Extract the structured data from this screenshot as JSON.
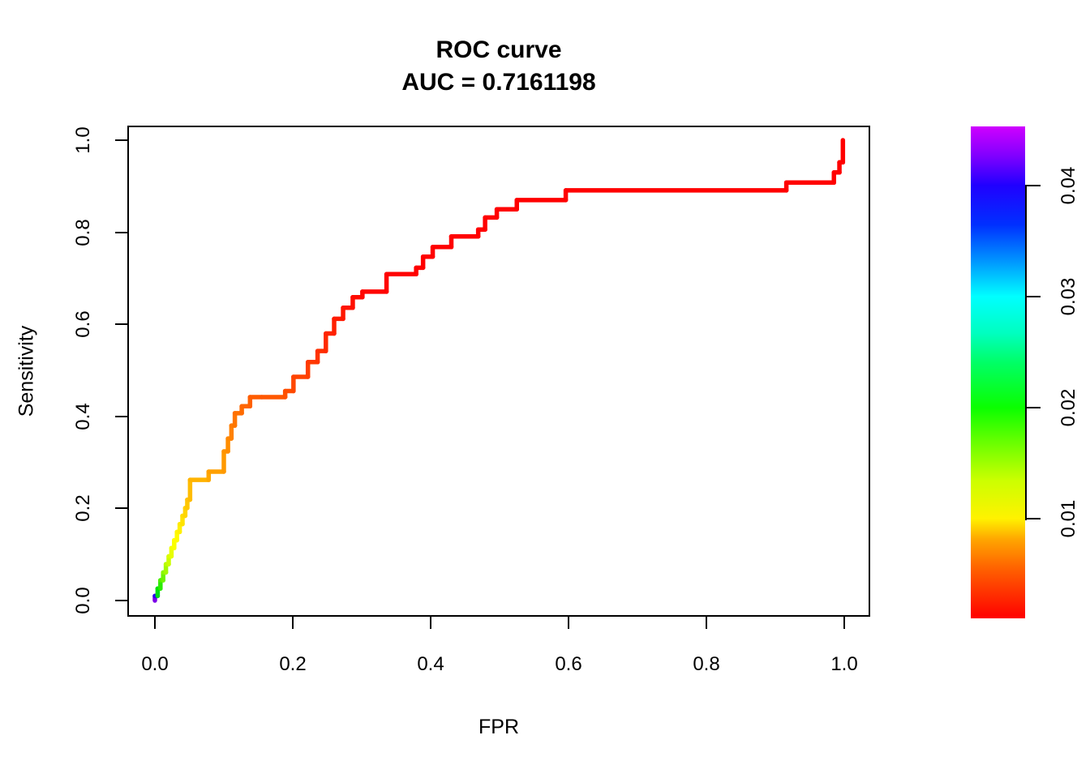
{
  "title": {
    "line1": "ROC curve",
    "line2": "AUC = 0.7161198"
  },
  "chart_data": {
    "type": "line",
    "subtype": "roc-step-curve",
    "title": "ROC curve",
    "subtitle": "AUC = 0.7161198",
    "auc_label": "AUC = 0.7161198",
    "auc_value": 0.7161198,
    "xlabel": "FPR",
    "ylabel": "Sensitivity",
    "xlim": [
      0.0,
      1.0
    ],
    "ylim": [
      0.0,
      1.0
    ],
    "grid": false,
    "background_color": "#FFFFFF",
    "x_ticks": {
      "values": [
        0.0,
        0.2,
        0.4,
        0.6,
        0.8,
        1.0
      ],
      "labels": [
        "0.0",
        "0.2",
        "0.4",
        "0.6",
        "0.8",
        "1.0"
      ]
    },
    "y_ticks": {
      "values": [
        0.0,
        0.2,
        0.4,
        0.6,
        0.8,
        1.0
      ],
      "labels": [
        "0.0",
        "0.2",
        "0.4",
        "0.6",
        "0.8",
        "1.0"
      ]
    },
    "curve_points": [
      [
        0.0,
        0.0,
        "#7A00E8"
      ],
      [
        0.0,
        0.01,
        "#2B00F0"
      ],
      [
        0.004,
        0.01,
        "#00DD15"
      ],
      [
        0.004,
        0.026,
        "#00E405"
      ],
      [
        0.008,
        0.026,
        "#2BEC00"
      ],
      [
        0.008,
        0.044,
        "#4FF000"
      ],
      [
        0.012,
        0.044,
        "#6EF400"
      ],
      [
        0.012,
        0.061,
        "#8AF700"
      ],
      [
        0.016,
        0.061,
        "#A3F900"
      ],
      [
        0.016,
        0.079,
        "#B8FB00"
      ],
      [
        0.02,
        0.079,
        "#CBFD00"
      ],
      [
        0.02,
        0.096,
        "#DAFE00"
      ],
      [
        0.024,
        0.096,
        "#E7FE00"
      ],
      [
        0.024,
        0.114,
        "#F1FF00"
      ],
      [
        0.028,
        0.114,
        "#F9FF00"
      ],
      [
        0.028,
        0.131,
        "#FDFF00"
      ],
      [
        0.032,
        0.131,
        "#FFFB00"
      ],
      [
        0.032,
        0.149,
        "#FFF600"
      ],
      [
        0.036,
        0.149,
        "#FFF000"
      ],
      [
        0.036,
        0.166,
        "#FFEA00"
      ],
      [
        0.04,
        0.166,
        "#FFE300"
      ],
      [
        0.04,
        0.184,
        "#FFDC00"
      ],
      [
        0.044,
        0.184,
        "#FFD500"
      ],
      [
        0.044,
        0.201,
        "#FFCE00"
      ],
      [
        0.047,
        0.201,
        "#FFC700"
      ],
      [
        0.047,
        0.219,
        "#FFC107"
      ],
      [
        0.051,
        0.219,
        "#FFBC00"
      ],
      [
        0.051,
        0.262,
        "#FFB300"
      ],
      [
        0.078,
        0.262,
        "#FFA800"
      ],
      [
        0.078,
        0.28,
        "#FFA000"
      ],
      [
        0.1,
        0.28,
        "#FF9900"
      ],
      [
        0.1,
        0.324,
        "#FF9300"
      ],
      [
        0.106,
        0.324,
        "#FF8D00"
      ],
      [
        0.106,
        0.352,
        "#FF8700"
      ],
      [
        0.111,
        0.352,
        "#FF8100"
      ],
      [
        0.111,
        0.38,
        "#FF7B00"
      ],
      [
        0.116,
        0.38,
        "#FF7600"
      ],
      [
        0.116,
        0.407,
        "#FF7000"
      ],
      [
        0.126,
        0.407,
        "#FF6B00"
      ],
      [
        0.126,
        0.422,
        "#FF6600"
      ],
      [
        0.138,
        0.422,
        "#FF6100"
      ],
      [
        0.138,
        0.442,
        "#FF5C00"
      ],
      [
        0.155,
        0.442,
        "#FF5700"
      ],
      [
        0.189,
        0.442,
        "#FF5200"
      ],
      [
        0.189,
        0.455,
        "#FF4D00"
      ],
      [
        0.201,
        0.455,
        "#FF4800"
      ],
      [
        0.201,
        0.486,
        "#FF4300"
      ],
      [
        0.222,
        0.486,
        "#FF3E00"
      ],
      [
        0.222,
        0.518,
        "#FF3900"
      ],
      [
        0.236,
        0.518,
        "#FF3400"
      ],
      [
        0.236,
        0.542,
        "#FF2F00"
      ],
      [
        0.248,
        0.542,
        "#FF2A00"
      ],
      [
        0.248,
        0.58,
        "#FF2500"
      ],
      [
        0.26,
        0.58,
        "#FF2000"
      ],
      [
        0.26,
        0.612,
        "#FF1B00"
      ],
      [
        0.273,
        0.612,
        "#FF1700"
      ],
      [
        0.273,
        0.636,
        "#FF1300"
      ],
      [
        0.287,
        0.636,
        "#FF0F00"
      ],
      [
        0.287,
        0.659,
        "#FF0B00"
      ],
      [
        0.301,
        0.659,
        "#FF0800"
      ],
      [
        0.301,
        0.671,
        "#FF0500"
      ],
      [
        0.336,
        0.671,
        "#FF0300"
      ],
      [
        0.336,
        0.709,
        "#FF0100"
      ],
      [
        0.379,
        0.709,
        "#FF0000"
      ],
      [
        0.379,
        0.723,
        "#FF0000"
      ],
      [
        0.389,
        0.723,
        "#FF0000"
      ],
      [
        0.389,
        0.747,
        "#FF0000"
      ],
      [
        0.403,
        0.747,
        "#FF0000"
      ],
      [
        0.403,
        0.768,
        "#FF0000"
      ],
      [
        0.43,
        0.768,
        "#FF0000"
      ],
      [
        0.43,
        0.791,
        "#FF0000"
      ],
      [
        0.469,
        0.791,
        "#FF0000"
      ],
      [
        0.469,
        0.806,
        "#FF0000"
      ],
      [
        0.479,
        0.806,
        "#FF0000"
      ],
      [
        0.479,
        0.832,
        "#FF0000"
      ],
      [
        0.496,
        0.832,
        "#FF0000"
      ],
      [
        0.496,
        0.85,
        "#FF0000"
      ],
      [
        0.525,
        0.85,
        "#FF0000"
      ],
      [
        0.525,
        0.87,
        "#FF0000"
      ],
      [
        0.596,
        0.87,
        "#FF0000"
      ],
      [
        0.596,
        0.891,
        "#FF0000"
      ],
      [
        0.916,
        0.891,
        "#FF0000"
      ],
      [
        0.916,
        0.908,
        "#FF0000"
      ],
      [
        0.985,
        0.908,
        "#FF0000"
      ],
      [
        0.985,
        0.93,
        "#FF0000"
      ],
      [
        0.993,
        0.93,
        "#FF0000"
      ],
      [
        0.993,
        0.952,
        "#FF0000"
      ],
      [
        0.998,
        0.952,
        "#FF0000"
      ],
      [
        0.998,
        1.0,
        "#FF0000"
      ]
    ],
    "colorbar": {
      "position": "right",
      "orientation": "vertical",
      "scale_range_bottom_to_top": [
        0.001,
        0.0453
      ],
      "tick_values": [
        0.01,
        0.02,
        0.03,
        0.04
      ],
      "tick_labels": [
        "0.01",
        "0.02",
        "0.03",
        "0.04"
      ],
      "gradient_stops_bottom_to_top": [
        [
          0.0,
          "#FF0000"
        ],
        [
          0.1,
          "#FF6000"
        ],
        [
          0.16,
          "#FFA500"
        ],
        [
          0.203,
          "#FFF200"
        ],
        [
          0.28,
          "#CCFF00"
        ],
        [
          0.36,
          "#66FF00"
        ],
        [
          0.428,
          "#0BFF00"
        ],
        [
          0.52,
          "#00FF66"
        ],
        [
          0.58,
          "#00FFC0"
        ],
        [
          0.654,
          "#00FFFF"
        ],
        [
          0.73,
          "#0090FF"
        ],
        [
          0.8,
          "#0030FF"
        ],
        [
          0.88,
          "#2000FF"
        ],
        [
          0.94,
          "#8000FF"
        ],
        [
          1.0,
          "#CF00FF"
        ]
      ]
    }
  }
}
